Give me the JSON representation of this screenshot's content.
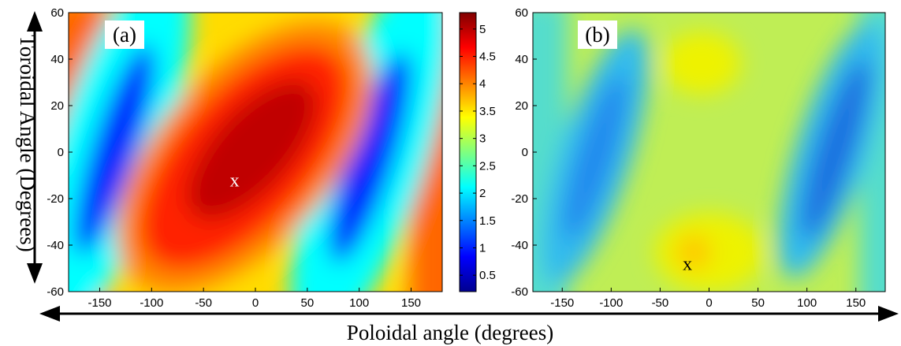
{
  "chart_data": [
    {
      "type": "heatmap",
      "panel_label": "(a)",
      "colorscale": "jet",
      "xlim": [
        -180,
        180
      ],
      "ylim": [
        -60,
        60
      ],
      "xticks": [
        -150,
        -100,
        -50,
        0,
        50,
        100,
        150
      ],
      "yticks": [
        -60,
        -40,
        -20,
        0,
        20,
        40,
        60
      ],
      "clim": [
        0.2,
        5.3
      ],
      "features": [
        {
          "kind": "peak",
          "x": 10,
          "y": 0,
          "value": 5.2
        },
        {
          "kind": "trough",
          "x": -125,
          "y": 10,
          "value": 0.4
        },
        {
          "kind": "trough",
          "x": 135,
          "y": -10,
          "value": 0.4
        }
      ],
      "marker": {
        "label": "x",
        "x": -20,
        "y": -12
      }
    },
    {
      "type": "heatmap",
      "panel_label": "(b)",
      "colorscale": "jet",
      "xlim": [
        -180,
        180
      ],
      "ylim": [
        -60,
        60
      ],
      "xticks": [
        -150,
        -100,
        -50,
        0,
        50,
        100,
        150
      ],
      "yticks": [
        -60,
        -40,
        -20,
        0,
        20,
        40,
        60
      ],
      "clim": [
        0.2,
        5.3
      ],
      "features": [
        {
          "kind": "background",
          "value": 3.1
        },
        {
          "kind": "trough",
          "x": -120,
          "y": 10,
          "value": 1.7
        },
        {
          "kind": "trough",
          "x": 130,
          "y": -10,
          "value": 1.4
        },
        {
          "kind": "peak",
          "x": -25,
          "y": -45,
          "value": 3.6
        }
      ],
      "marker": {
        "label": "x",
        "x": -22,
        "y": -48
      }
    }
  ],
  "colorbar": {
    "ticks": [
      "0.5",
      "1",
      "1.5",
      "2",
      "2.5",
      "3",
      "3.5",
      "4",
      "4.5",
      "5"
    ],
    "min": 0.2,
    "max": 5.3
  },
  "ylabel": "Toroidal Angle (Degrees)",
  "xlabel": "Poloidal angle (degrees)"
}
